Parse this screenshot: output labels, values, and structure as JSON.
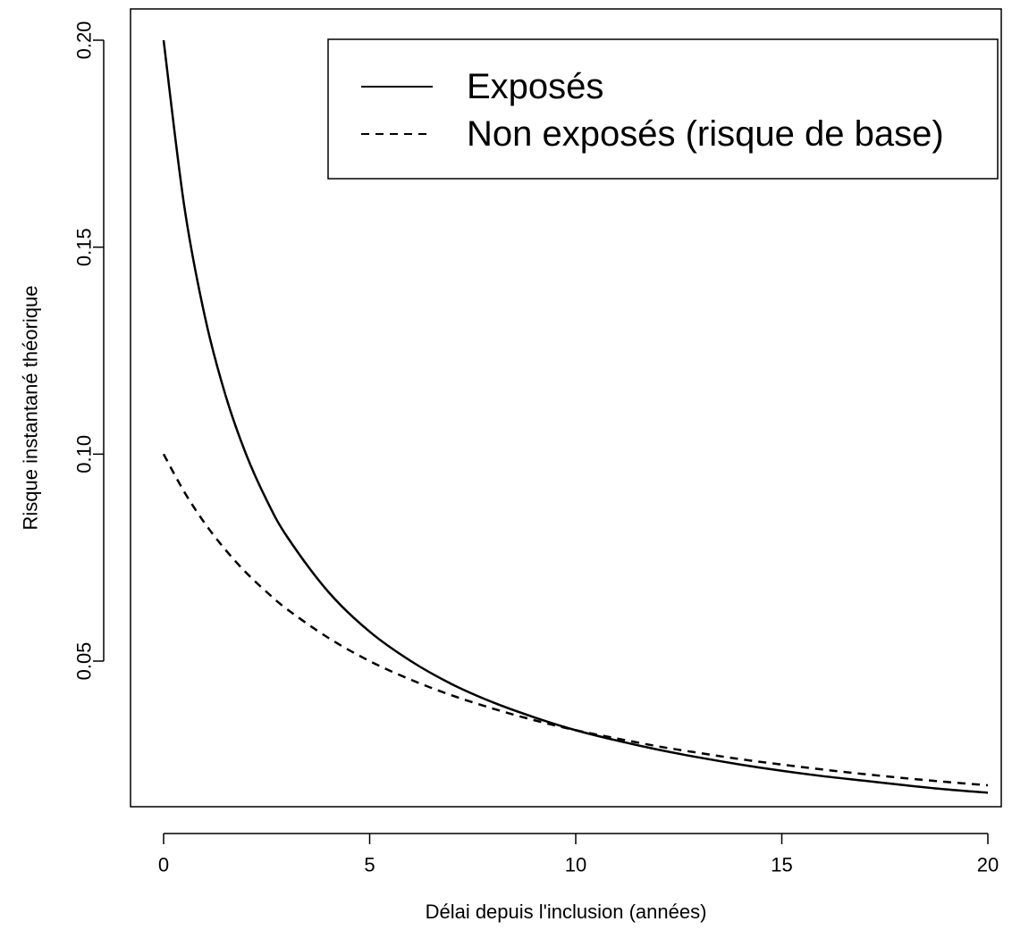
{
  "chart_data": {
    "type": "line",
    "xlabel": "Délai depuis l'inclusion (années)",
    "ylabel": "Risque instantané théorique",
    "xlim": [
      0,
      20
    ],
    "ylim": [
      0.02,
      0.2
    ],
    "x_ticks": [
      0,
      5,
      10,
      15,
      20
    ],
    "y_ticks": [
      0.05,
      0.1,
      0.15,
      0.2
    ],
    "x_tick_labels": [
      "0",
      "5",
      "10",
      "15",
      "20"
    ],
    "y_tick_labels": [
      "0.05",
      "0.10",
      "0.15",
      "0.20"
    ],
    "grid": false,
    "legend_position": "top-right",
    "series": [
      {
        "name": "Exposés",
        "line_style": "solid",
        "color": "#000000",
        "x": [
          0,
          0.5,
          1,
          1.5,
          2,
          2.5,
          3,
          4,
          5,
          6,
          7,
          8,
          9,
          10,
          11,
          12,
          13,
          14,
          15,
          16,
          17,
          18,
          19,
          20
        ],
        "y": [
          0.2,
          0.16,
          0.1333,
          0.1143,
          0.1,
          0.0889,
          0.08,
          0.0667,
          0.0571,
          0.05,
          0.0444,
          0.04,
          0.0364,
          0.0333,
          0.0308,
          0.0286,
          0.0267,
          0.025,
          0.0235,
          0.0222,
          0.0211,
          0.02,
          0.019,
          0.0182
        ]
      },
      {
        "name": "Non exposés (risque de base)",
        "line_style": "dashed",
        "color": "#000000",
        "x": [
          0,
          0.5,
          1,
          1.5,
          2,
          2.5,
          3,
          4,
          5,
          6,
          7,
          8,
          9,
          10,
          11,
          12,
          13,
          14,
          15,
          16,
          17,
          18,
          19,
          20
        ],
        "y": [
          0.1,
          0.0909,
          0.0833,
          0.0769,
          0.0714,
          0.0667,
          0.0625,
          0.0556,
          0.05,
          0.0455,
          0.0417,
          0.0385,
          0.0357,
          0.0333,
          0.0313,
          0.0294,
          0.0278,
          0.0263,
          0.025,
          0.0238,
          0.0227,
          0.0217,
          0.0208,
          0.02
        ]
      }
    ]
  }
}
